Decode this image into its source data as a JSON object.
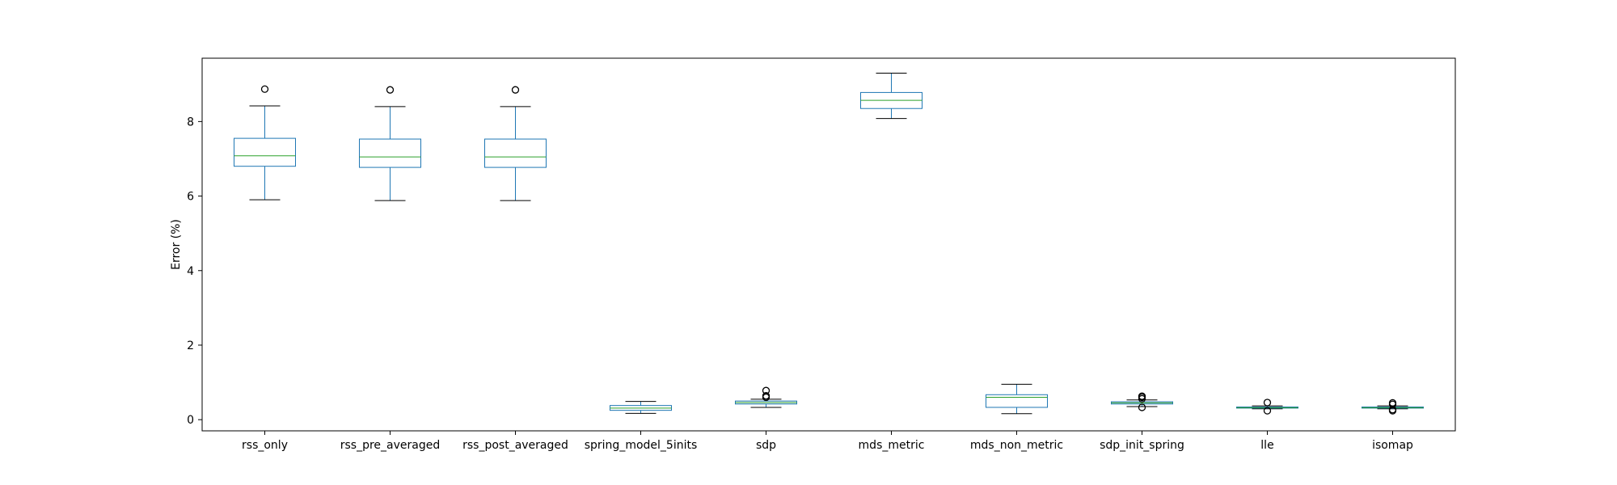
{
  "chart_data": {
    "type": "box",
    "title": "",
    "xlabel": "",
    "ylabel": "Error (%)",
    "ylim": [
      -0.3,
      9.7
    ],
    "yticks": [
      0,
      2,
      4,
      6,
      8
    ],
    "grid": false,
    "colors": {
      "box": "#1f77b4",
      "median": "#2ca02c",
      "whisker": "#000000",
      "flier": "#000000"
    },
    "categories": [
      "rss_only",
      "rss_pre_averaged",
      "rss_post_averaged",
      "spring_model_5inits",
      "sdp",
      "mds_metric",
      "mds_non_metric",
      "sdp_init_spring",
      "lle",
      "isomap"
    ],
    "boxes": [
      {
        "category": "rss_only",
        "whisker_low": 5.9,
        "q1": 6.8,
        "median": 7.08,
        "q3": 7.55,
        "whisker_high": 8.42,
        "fliers": [
          8.87
        ]
      },
      {
        "category": "rss_pre_averaged",
        "whisker_low": 5.88,
        "q1": 6.77,
        "median": 7.05,
        "q3": 7.53,
        "whisker_high": 8.4,
        "fliers": [
          8.85
        ]
      },
      {
        "category": "rss_post_averaged",
        "whisker_low": 5.88,
        "q1": 6.77,
        "median": 7.05,
        "q3": 7.53,
        "whisker_high": 8.4,
        "fliers": [
          8.85
        ]
      },
      {
        "category": "spring_model_5inits",
        "whisker_low": 0.17,
        "q1": 0.25,
        "median": 0.31,
        "q3": 0.38,
        "whisker_high": 0.49,
        "fliers": []
      },
      {
        "category": "sdp",
        "whisker_low": 0.33,
        "q1": 0.42,
        "median": 0.46,
        "q3": 0.5,
        "whisker_high": 0.55,
        "fliers": [
          0.6,
          0.64,
          0.78
        ]
      },
      {
        "category": "mds_metric",
        "whisker_low": 8.08,
        "q1": 8.35,
        "median": 8.57,
        "q3": 8.78,
        "whisker_high": 9.3,
        "fliers": []
      },
      {
        "category": "mds_non_metric",
        "whisker_low": 0.16,
        "q1": 0.33,
        "median": 0.6,
        "q3": 0.67,
        "whisker_high": 0.95,
        "fliers": []
      },
      {
        "category": "sdp_init_spring",
        "whisker_low": 0.35,
        "q1": 0.42,
        "median": 0.45,
        "q3": 0.48,
        "whisker_high": 0.53,
        "fliers": [
          0.33,
          0.56,
          0.6,
          0.63
        ]
      },
      {
        "category": "lle",
        "whisker_low": 0.29,
        "q1": 0.31,
        "median": 0.32,
        "q3": 0.34,
        "whisker_high": 0.37,
        "fliers": [
          0.24,
          0.46
        ]
      },
      {
        "category": "isomap",
        "whisker_low": 0.29,
        "q1": 0.31,
        "median": 0.32,
        "q3": 0.34,
        "whisker_high": 0.37,
        "fliers": [
          0.24,
          0.27,
          0.41,
          0.45
        ]
      }
    ]
  }
}
